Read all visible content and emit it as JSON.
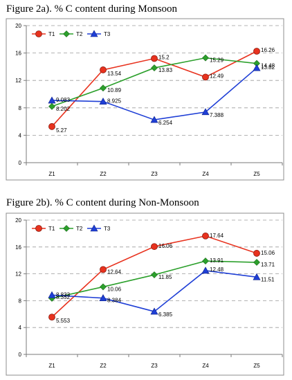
{
  "chart_data": [
    {
      "type": "line",
      "title": "Figure 2a). % C content during Monsoon",
      "categories": [
        "Z1",
        "Z2",
        "Z3",
        "Z4",
        "Z5"
      ],
      "ylim": [
        0,
        20
      ],
      "yticks": [
        "0",
        "4",
        "8",
        "12",
        "16",
        "20"
      ],
      "grid": true,
      "legend": "top-left",
      "series": [
        {
          "name": "T1",
          "color": "#e8321e",
          "marker": "circle",
          "values": [
            5.27,
            13.54,
            15.2,
            12.49,
            16.26
          ],
          "labels": [
            "5.27",
            "13.54",
            "15.2",
            "12.49",
            "16.26"
          ]
        },
        {
          "name": "T2",
          "color": "#2ca02c",
          "marker": "diamond",
          "values": [
            8.202,
            10.89,
            13.83,
            15.29,
            14.48
          ],
          "labels": [
            "8.202",
            "10.89",
            "13.83",
            "15.29",
            "14.48"
          ]
        },
        {
          "name": "T3",
          "color": "#1f3fd6",
          "marker": "triangle",
          "values": [
            9.083,
            8.925,
            6.254,
            7.388,
            13.82
          ],
          "labels": [
            "9.083",
            "8.925",
            "6.254",
            "7.388",
            "13.82"
          ]
        }
      ]
    },
    {
      "type": "line",
      "title": "Figure 2b). % C content during Non-Monsoon",
      "categories": [
        "Z1",
        "Z2",
        "Z3",
        "Z4",
        "Z5"
      ],
      "ylim": [
        0,
        20
      ],
      "yticks": [
        "0",
        "4",
        "8",
        "12",
        "16",
        "20"
      ],
      "grid": true,
      "legend": "top-left",
      "series": [
        {
          "name": "T1",
          "color": "#e8321e",
          "marker": "circle",
          "values": [
            5.553,
            12.64,
            16.06,
            17.64,
            15.06
          ],
          "labels": [
            "5.553",
            "12.64",
            "16.06",
            "17.64",
            "15.06"
          ]
        },
        {
          "name": "T2",
          "color": "#2ca02c",
          "marker": "diamond",
          "values": [
            8.352,
            10.06,
            11.85,
            13.91,
            13.71
          ],
          "labels": [
            "8.352",
            "10.06",
            "11.85",
            "13.91",
            "13.71"
          ]
        },
        {
          "name": "T3",
          "color": "#1f3fd6",
          "marker": "triangle",
          "values": [
            8.833,
            8.384,
            6.385,
            12.48,
            11.51
          ],
          "labels": [
            "8.833",
            "8.384",
            "6.385",
            "12.48",
            "11.51"
          ]
        }
      ]
    }
  ]
}
